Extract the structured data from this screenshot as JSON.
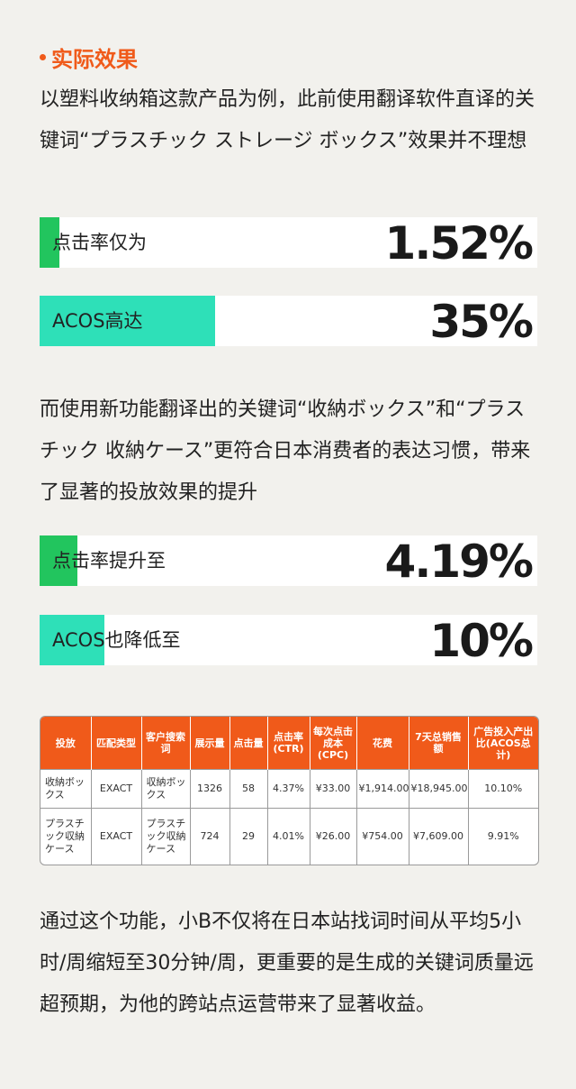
{
  "heading": "实际效果",
  "paragraphs": {
    "p1": "以塑料收纳箱这款产品为例，此前使用翻译软件直译的关键词“プラスチック ストレージ ボックス”效果并不理想",
    "p2": "而使用新功能翻译出的关键词“收納ボックス”和“プラスチック 收納ケース”更符合日本消费者的表达习惯，带来了显著的投放效果的提升",
    "p3": "通过这个功能，小B不仅将在日本站找词时间从平均5小时/周缩短至30分钟/周，更重要的是生成的关键词质量远超预期，为他的跨站点运营带来了显著收益。"
  },
  "stats": {
    "before_ctr": {
      "label": "点击率仅为",
      "value": "1.52%",
      "color": "#22c55e"
    },
    "before_acos": {
      "label": "ACOS高达",
      "value": "35%",
      "color": "#2ee0b8"
    },
    "after_ctr": {
      "label": "点击率提升至",
      "value": "4.19%",
      "color": "#22c55e"
    },
    "after_acos": {
      "label": "ACOS也降低至",
      "value": "10%",
      "color": "#2ee0b8"
    }
  },
  "table": {
    "headers": [
      "投放",
      "匹配类型",
      "客户搜索词",
      "展示量",
      "点击量",
      "点击率(CTR)",
      "每次点击成本(CPC)",
      "花费",
      "7天总销售额",
      "广告投入产出比(ACOS总计)"
    ],
    "rows": [
      [
        "收納ボックス",
        "EXACT",
        "収納ボックス",
        "1326",
        "58",
        "4.37%",
        "¥33.00",
        "¥1,914.00",
        "¥18,945.00",
        "10.10%"
      ],
      [
        "プラスチック収納ケース",
        "EXACT",
        "プラスチック収納ケース",
        "724",
        "29",
        "4.01%",
        "¥26.00",
        "¥754.00",
        "¥7,609.00",
        "9.91%"
      ]
    ]
  }
}
